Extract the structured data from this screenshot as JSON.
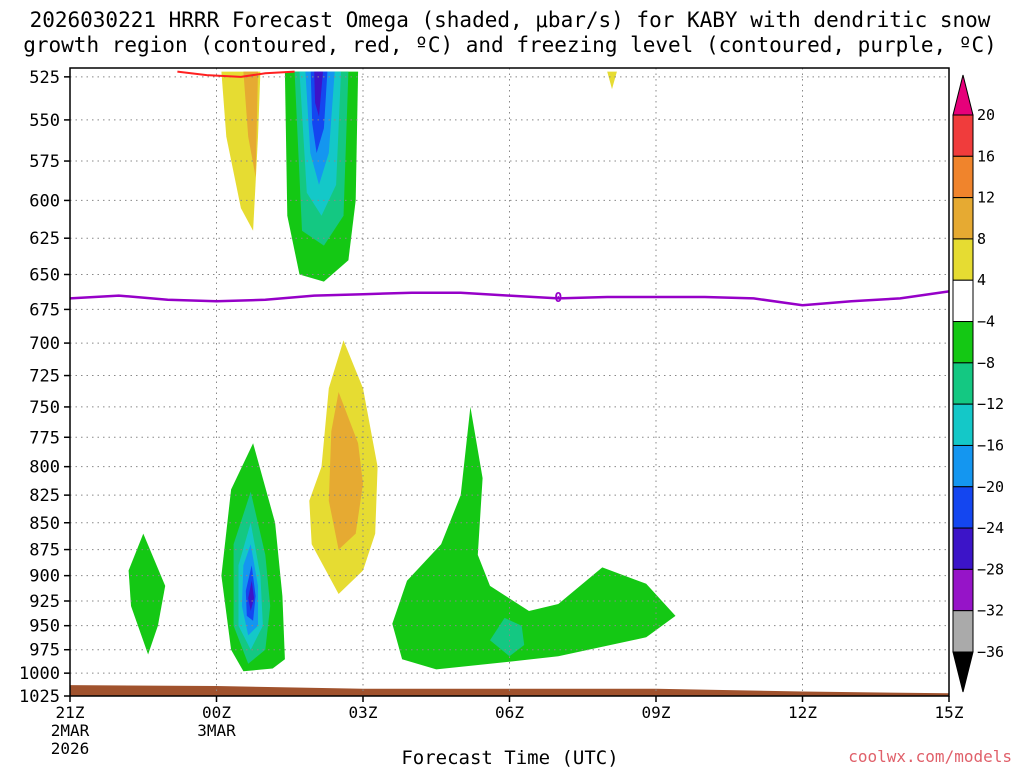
{
  "chart_data": {
    "type": "filled-contour",
    "title_line1": "2026030221 HRRR Forecast Omega (shaded, μbar/s) for KABY with dendritic snow",
    "title_line2": "growth region (contoured, red, ºC) and freezing level (contoured, purple, ºC)",
    "xlabel": "Forecast Time (UTC)",
    "x_hours": [
      0,
      3,
      6,
      9,
      12,
      15,
      18
    ],
    "x_ticks": [
      {
        "hour": 0,
        "label": "21Z",
        "sub1": "2MAR",
        "sub2": "2026"
      },
      {
        "hour": 3,
        "label": "00Z",
        "sub1": "3MAR",
        "sub2": ""
      },
      {
        "hour": 6,
        "label": "03Z",
        "sub1": "",
        "sub2": ""
      },
      {
        "hour": 9,
        "label": "06Z",
        "sub1": "",
        "sub2": ""
      },
      {
        "hour": 12,
        "label": "09Z",
        "sub1": "",
        "sub2": ""
      },
      {
        "hour": 15,
        "label": "12Z",
        "sub1": "",
        "sub2": ""
      },
      {
        "hour": 18,
        "label": "15Z",
        "sub1": "",
        "sub2": ""
      }
    ],
    "y_levels": [
      "525",
      "550",
      "575",
      "600",
      "625",
      "650",
      "675",
      "700",
      "725",
      "750",
      "775",
      "800",
      "825",
      "850",
      "875",
      "900",
      "925",
      "950",
      "975",
      "1000",
      "1025"
    ],
    "ylim_hpa": [
      1025,
      520
    ],
    "colorbar": {
      "labels": [
        "20",
        "16",
        "12",
        "8",
        "4",
        "−4",
        "−8",
        "−12",
        "−16",
        "−20",
        "−24",
        "−28",
        "−32",
        "−36"
      ],
      "colors": [
        "#e6007a",
        "#f03c3c",
        "#f0842c",
        "#e6aa32",
        "#e6dc32",
        "#ffffff",
        "#14c814",
        "#14c882",
        "#14c8c8",
        "#1496f0",
        "#1446f0",
        "#3c14c8",
        "#9614c8",
        "#aaaaaa",
        "#000000"
      ]
    },
    "freezing_level_label": "0",
    "freezing_level_hpa": [
      [
        0,
        667
      ],
      [
        1,
        665
      ],
      [
        2,
        668
      ],
      [
        3,
        669
      ],
      [
        4,
        668
      ],
      [
        5,
        665
      ],
      [
        6,
        664
      ],
      [
        7,
        663
      ],
      [
        8,
        663
      ],
      [
        9,
        665
      ],
      [
        10,
        667
      ],
      [
        11,
        666
      ],
      [
        12,
        666
      ],
      [
        13,
        666
      ],
      [
        14,
        667
      ],
      [
        15,
        672
      ],
      [
        16,
        669
      ],
      [
        17,
        667
      ],
      [
        18,
        662
      ]
    ],
    "features": [
      {
        "name": "upper-positive-omega",
        "level": "4",
        "color": "#e6dc32",
        "pts": [
          [
            3.1,
            522
          ],
          [
            3.9,
            522
          ],
          [
            3.85,
            560
          ],
          [
            3.75,
            620
          ],
          [
            3.5,
            605
          ],
          [
            3.2,
            560
          ]
        ]
      },
      {
        "name": "upper-positive-omega-core",
        "level": "8",
        "color": "#e6aa32",
        "pts": [
          [
            3.55,
            522
          ],
          [
            3.85,
            522
          ],
          [
            3.8,
            585
          ],
          [
            3.65,
            560
          ]
        ]
      },
      {
        "name": "upper-negative-omega",
        "level": "-4",
        "color": "#14c814",
        "pts": [
          [
            4.4,
            522
          ],
          [
            5.9,
            522
          ],
          [
            5.85,
            600
          ],
          [
            5.7,
            640
          ],
          [
            5.2,
            655
          ],
          [
            4.7,
            650
          ],
          [
            4.45,
            610
          ]
        ]
      },
      {
        "name": "upper-negative-omega-l2",
        "level": "-8",
        "color": "#14c882",
        "pts": [
          [
            4.6,
            522
          ],
          [
            5.7,
            522
          ],
          [
            5.6,
            610
          ],
          [
            5.2,
            630
          ],
          [
            4.75,
            620
          ]
        ]
      },
      {
        "name": "upper-negative-omega-l3",
        "level": "-12",
        "color": "#14c8c8",
        "pts": [
          [
            4.7,
            522
          ],
          [
            5.55,
            522
          ],
          [
            5.45,
            590
          ],
          [
            5.15,
            610
          ],
          [
            4.85,
            595
          ]
        ]
      },
      {
        "name": "upper-negative-omega-l4",
        "level": "-16",
        "color": "#1496f0",
        "pts": [
          [
            4.82,
            522
          ],
          [
            5.42,
            522
          ],
          [
            5.3,
            570
          ],
          [
            5.1,
            590
          ],
          [
            4.92,
            570
          ]
        ]
      },
      {
        "name": "upper-negative-omega-l5",
        "level": "-20",
        "color": "#1446f0",
        "pts": [
          [
            4.93,
            522
          ],
          [
            5.27,
            522
          ],
          [
            5.2,
            555
          ],
          [
            5.05,
            570
          ],
          [
            4.96,
            552
          ]
        ]
      },
      {
        "name": "upper-negative-omega-core",
        "level": "-24",
        "color": "#3c14c8",
        "pts": [
          [
            5.0,
            522
          ],
          [
            5.18,
            522
          ],
          [
            5.1,
            548
          ],
          [
            5.02,
            540
          ]
        ]
      },
      {
        "name": "mid-positive-omega",
        "level": "4",
        "color": "#e6dc32",
        "pts": [
          [
            5.6,
            698
          ],
          [
            6.0,
            735
          ],
          [
            6.3,
            800
          ],
          [
            6.25,
            860
          ],
          [
            6.0,
            895
          ],
          [
            5.5,
            918
          ],
          [
            4.95,
            870
          ],
          [
            4.9,
            830
          ],
          [
            5.15,
            800
          ],
          [
            5.3,
            735
          ]
        ]
      },
      {
        "name": "mid-positive-omega-core",
        "level": "8",
        "color": "#e6aa32",
        "pts": [
          [
            5.5,
            738
          ],
          [
            5.9,
            780
          ],
          [
            6.0,
            815
          ],
          [
            5.85,
            860
          ],
          [
            5.5,
            875
          ],
          [
            5.3,
            830
          ],
          [
            5.35,
            770
          ]
        ]
      },
      {
        "name": "left-negative-omega",
        "level": "-4",
        "color": "#14c814",
        "pts": [
          [
            1.5,
            860
          ],
          [
            1.95,
            910
          ],
          [
            1.8,
            950
          ],
          [
            1.6,
            980
          ],
          [
            1.25,
            930
          ],
          [
            1.2,
            895
          ]
        ]
      },
      {
        "name": "center-negative-omega",
        "level": "-4",
        "color": "#14c814",
        "pts": [
          [
            3.75,
            780
          ],
          [
            4.2,
            850
          ],
          [
            4.35,
            920
          ],
          [
            4.4,
            985
          ],
          [
            4.15,
            995
          ],
          [
            3.55,
            998
          ],
          [
            3.3,
            975
          ],
          [
            3.1,
            900
          ],
          [
            3.3,
            820
          ]
        ]
      },
      {
        "name": "center-negative-omega-l2",
        "level": "-8",
        "color": "#14c882",
        "pts": [
          [
            3.7,
            822
          ],
          [
            4.0,
            880
          ],
          [
            4.1,
            930
          ],
          [
            4.0,
            975
          ],
          [
            3.65,
            990
          ],
          [
            3.35,
            950
          ],
          [
            3.35,
            870
          ]
        ]
      },
      {
        "name": "center-negative-omega-l3",
        "level": "-12",
        "color": "#14c8c8",
        "pts": [
          [
            3.7,
            850
          ],
          [
            3.9,
            900
          ],
          [
            3.95,
            950
          ],
          [
            3.7,
            975
          ],
          [
            3.45,
            950
          ],
          [
            3.45,
            890
          ]
        ]
      },
      {
        "name": "center-negative-omega-l4",
        "level": "-16",
        "color": "#1496f0",
        "pts": [
          [
            3.7,
            870
          ],
          [
            3.85,
            910
          ],
          [
            3.85,
            950
          ],
          [
            3.65,
            960
          ],
          [
            3.52,
            930
          ],
          [
            3.55,
            890
          ]
        ]
      },
      {
        "name": "center-negative-omega-l5",
        "level": "-20",
        "color": "#1446f0",
        "pts": [
          [
            3.72,
            890
          ],
          [
            3.8,
            920
          ],
          [
            3.75,
            945
          ],
          [
            3.62,
            940
          ],
          [
            3.6,
            915
          ]
        ]
      },
      {
        "name": "center-negative-omega-core",
        "level": "-24",
        "color": "#3c14c8",
        "pts": [
          [
            3.72,
            905
          ],
          [
            3.77,
            922
          ],
          [
            3.7,
            935
          ],
          [
            3.65,
            922
          ]
        ]
      },
      {
        "name": "lower-right-negative-omega",
        "level": "-4",
        "color": "#14c814",
        "pts": [
          [
            8.2,
            750
          ],
          [
            8.45,
            810
          ],
          [
            8.35,
            880
          ],
          [
            8.6,
            910
          ],
          [
            9.4,
            935
          ],
          [
            10.0,
            928
          ],
          [
            10.9,
            892
          ],
          [
            11.8,
            908
          ],
          [
            12.4,
            940
          ],
          [
            11.8,
            962
          ],
          [
            10.0,
            982
          ],
          [
            8.6,
            990
          ],
          [
            7.5,
            996
          ],
          [
            6.8,
            985
          ],
          [
            6.6,
            948
          ],
          [
            6.9,
            905
          ],
          [
            7.6,
            870
          ],
          [
            8.0,
            825
          ]
        ]
      },
      {
        "name": "lower-right-negative-omega-core",
        "level": "-8",
        "color": "#14c882",
        "pts": [
          [
            8.9,
            942
          ],
          [
            9.25,
            950
          ],
          [
            9.3,
            970
          ],
          [
            9.0,
            982
          ],
          [
            8.6,
            965
          ]
        ]
      },
      {
        "name": "small-positive-omega",
        "level": "4",
        "color": "#e6dc32",
        "pts": [
          [
            11.0,
            522
          ],
          [
            11.2,
            522
          ],
          [
            11.1,
            532
          ]
        ]
      }
    ],
    "dgz_contour_hpa": [
      [
        2.2,
        522
      ],
      [
        2.8,
        524
      ],
      [
        3.5,
        525
      ],
      [
        4.0,
        523
      ],
      [
        4.6,
        522
      ]
    ],
    "terrain_top_hpa": [
      [
        0,
        1013
      ],
      [
        3,
        1014
      ],
      [
        6,
        1017
      ],
      [
        9,
        1017
      ],
      [
        12,
        1017
      ],
      [
        15,
        1020
      ],
      [
        18,
        1022
      ]
    ],
    "credit": "coolwx.com/models"
  }
}
